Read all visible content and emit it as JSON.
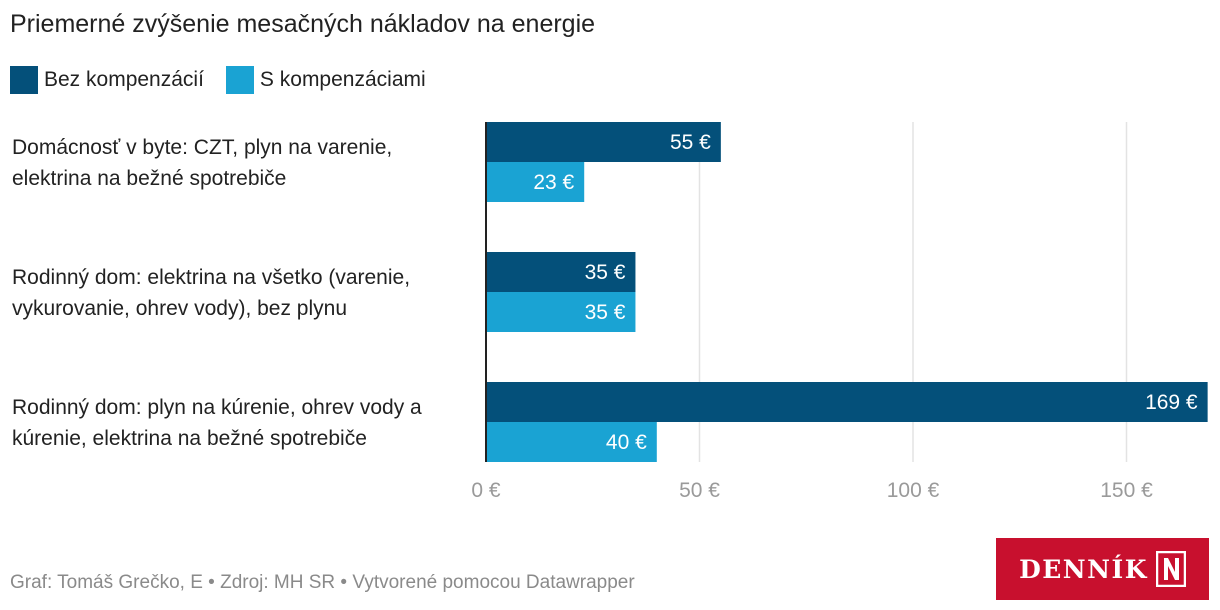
{
  "chart_data": {
    "type": "bar",
    "orientation": "horizontal",
    "title": "Priemerné zvýšenie mesačných nákladov na energie",
    "categories": [
      [
        "Domácnosť v byte: CZT, plyn na varenie,",
        "elektrina na bežné spotrebiče"
      ],
      [
        "Rodinný dom: elektrina na všetko (varenie,",
        "vykurovanie, ohrev vody), bez plynu"
      ],
      [
        "Rodinný dom: plyn na kúrenie, ohrev vody a",
        "kúrenie, elektrina na bežné spotrebiče"
      ]
    ],
    "series": [
      {
        "name": "Bez kompenzácií",
        "color": "#04507a",
        "values": [
          55,
          35,
          169
        ],
        "labels": [
          "55 €",
          "35 €",
          "169 €"
        ]
      },
      {
        "name": "S kompenzáciami",
        "color": "#1aa3d3",
        "values": [
          23,
          35,
          40
        ],
        "labels": [
          "23 €",
          "35 €",
          "40 €"
        ]
      }
    ],
    "xlim": [
      0,
      169
    ],
    "xticks": [
      0,
      50,
      100,
      150
    ],
    "xtick_labels": [
      "0 €",
      "50 €",
      "100 €",
      "150 €"
    ],
    "grid": true,
    "legend": "top-left"
  },
  "footer": "Graf: Tomáš Grečko, E • Zdroj: MH SR • Vytvorené pomocou Datawrapper",
  "logo": {
    "text": "DENNÍK",
    "color": "#c8102e"
  }
}
